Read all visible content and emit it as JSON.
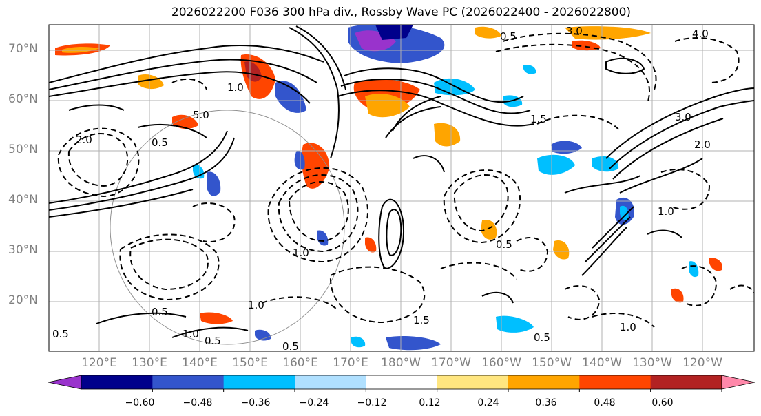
{
  "title": "2026022200 F036 300 hPa div., Rossby Wave PC (2026022400 - 2026022800)",
  "lat_labels": [
    "70°N",
    "60°N",
    "50°N",
    "40°N",
    "30°N",
    "20°N"
  ],
  "lon_labels": [
    "120°E",
    "130°E",
    "140°E",
    "150°E",
    "160°E",
    "170°E",
    "180°W",
    "170°W",
    "160°W",
    "150°W",
    "140°W",
    "130°W",
    "120°W"
  ],
  "colorbar": {
    "ticks": [
      "−0.60",
      "−0.48",
      "−0.36",
      "−0.24",
      "−0.12",
      "0.12",
      "0.24",
      "0.36",
      "0.48",
      "0.60"
    ],
    "colors": [
      "#9933cc",
      "#00008b",
      "#3355cc",
      "#00bfff",
      "#b0e0ff",
      "#ffffff",
      "#ffe680",
      "#ffa500",
      "#ff4500",
      "#b22222",
      "#ff88aa"
    ]
  },
  "contour_labels": [
    "3.0",
    "4.0",
    "0.5",
    "2.0",
    "5.0",
    "1.0",
    "1.5",
    "0.5",
    "1.0",
    "0.5",
    "1.0",
    "3.0",
    "2.0",
    "1.0",
    "0.5",
    "1.0",
    "0.5",
    "1.5",
    "0.5",
    "1.0",
    "0.5",
    "0.5"
  ]
}
